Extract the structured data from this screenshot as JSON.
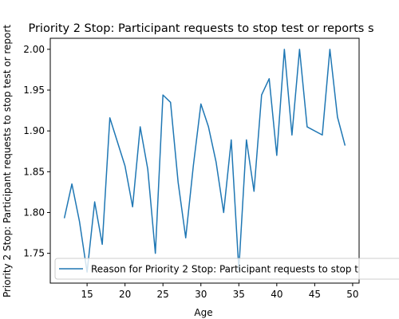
{
  "chart_data": {
    "type": "line",
    "title": "Priority 2 Stop: Participant requests to stop test or reports s",
    "xlabel": "Age",
    "ylabel": "Priority 2 Stop: Participant requests to stop test or report",
    "xlim": [
      10.15,
      50.85
    ],
    "ylim": [
      1.7135,
      2.0135
    ],
    "xticks": [
      "15",
      "20",
      "25",
      "30",
      "35",
      "40",
      "45",
      "50"
    ],
    "yticks": [
      "1.75",
      "1.80",
      "1.85",
      "1.90",
      "1.95",
      "2.00"
    ],
    "legend_position": "lower-left",
    "grid": false,
    "colors": {
      "line": "#1f77b4"
    },
    "series": [
      {
        "name": "Reason for Priority 2 Stop: Participant requests to stop t",
        "x": [
          12,
          13,
          14,
          15,
          16,
          17,
          18,
          20,
          21,
          22,
          23,
          24,
          25,
          26,
          27,
          28,
          29,
          30,
          31,
          32,
          33,
          34,
          35,
          36,
          37,
          38,
          39,
          40,
          41,
          42,
          43,
          44,
          46,
          47,
          48,
          49
        ],
        "y": [
          1.793,
          1.835,
          1.789,
          1.727,
          1.813,
          1.761,
          1.916,
          1.857,
          1.807,
          1.905,
          1.853,
          1.75,
          1.944,
          1.935,
          1.837,
          1.769,
          1.857,
          1.933,
          1.905,
          1.862,
          1.8,
          1.889,
          1.73,
          1.889,
          1.826,
          1.944,
          1.964,
          1.87,
          2.0,
          1.895,
          2.0,
          1.905,
          1.895,
          2.0,
          1.917,
          1.882
        ]
      }
    ]
  }
}
